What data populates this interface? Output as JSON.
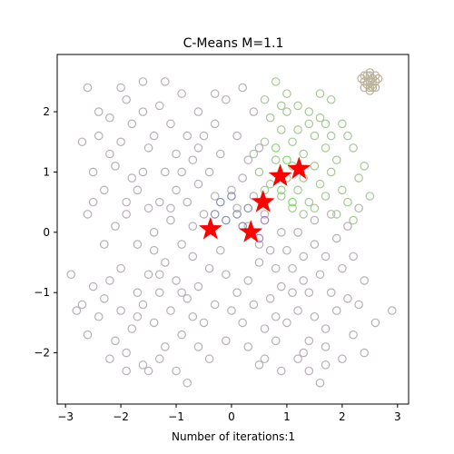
{
  "chart_data": {
    "type": "scatter",
    "title": "C-Means M=1.1",
    "xlabel": "Number of iterations:1",
    "ylabel": "",
    "xlim": [
      -3.15,
      3.2
    ],
    "ylim": [
      -2.85,
      2.95
    ],
    "x_ticks": [
      -3,
      -2,
      -1,
      0,
      1,
      2,
      3
    ],
    "y_ticks": [
      -2,
      -1,
      0,
      1,
      2
    ],
    "grid": false,
    "colors": {
      "cluster_gray": "#b8b0b8",
      "cluster_green": "#a8c896",
      "cluster_bright_green": "#7fdd6a",
      "cluster_blue": "#8a8fb0",
      "cluster_purple": "#a880c8",
      "cluster_tan": "#bdb29a",
      "center": "#ff0000"
    },
    "series": [
      {
        "color_key": "cluster_gray",
        "points": [
          [
            -2.6,
            2.4
          ],
          [
            -2.2,
            1.9
          ],
          [
            -2.0,
            1.5
          ],
          [
            -2.4,
            1.6
          ],
          [
            -2.5,
            1.0
          ],
          [
            -2.1,
            1.1
          ],
          [
            -2.3,
            0.7
          ],
          [
            -1.9,
            0.5
          ],
          [
            -2.6,
            0.3
          ],
          [
            -2.1,
            0.1
          ],
          [
            -1.8,
            1.8
          ],
          [
            -1.6,
            2.0
          ],
          [
            -1.5,
            1.4
          ],
          [
            -1.6,
            1.0
          ],
          [
            -1.7,
            0.7
          ],
          [
            -1.5,
            0.4
          ],
          [
            -1.4,
            0.0
          ],
          [
            -1.7,
            -0.2
          ],
          [
            -2.0,
            -0.6
          ],
          [
            -2.2,
            -0.8
          ],
          [
            -2.5,
            -0.9
          ],
          [
            -2.7,
            -1.2
          ],
          [
            -2.4,
            -1.4
          ],
          [
            -2.0,
            -1.3
          ],
          [
            -1.8,
            -1.6
          ],
          [
            -2.1,
            -1.8
          ],
          [
            -1.9,
            -2.0
          ],
          [
            -1.6,
            -2.2
          ],
          [
            -1.3,
            -2.1
          ],
          [
            -1.0,
            -2.3
          ],
          [
            -1.2,
            -1.9
          ],
          [
            -1.4,
            -1.5
          ],
          [
            -1.6,
            -1.2
          ],
          [
            -1.3,
            -1.0
          ],
          [
            -1.5,
            -0.7
          ],
          [
            -1.2,
            -0.5
          ],
          [
            -1.0,
            -0.8
          ],
          [
            -0.8,
            -1.1
          ],
          [
            -0.7,
            -1.4
          ],
          [
            -0.9,
            -1.7
          ],
          [
            -0.6,
            -1.9
          ],
          [
            -0.5,
            -1.5
          ],
          [
            -0.3,
            -1.2
          ],
          [
            -0.6,
            -0.9
          ],
          [
            -0.4,
            -0.6
          ],
          [
            -0.7,
            -0.4
          ],
          [
            -0.9,
            -0.2
          ],
          [
            -1.1,
            0.2
          ],
          [
            -1.3,
            0.5
          ],
          [
            -1.0,
            0.7
          ],
          [
            -1.2,
            1.0
          ],
          [
            -1.0,
            1.3
          ],
          [
            -0.8,
            1.6
          ],
          [
            -1.1,
            1.8
          ],
          [
            -1.3,
            2.1
          ],
          [
            -0.9,
            2.3
          ],
          [
            -0.6,
            2.0
          ],
          [
            -0.5,
            1.6
          ],
          [
            -0.7,
            1.2
          ],
          [
            -0.4,
            1.0
          ],
          [
            -0.6,
            0.8
          ],
          [
            -0.8,
            0.5
          ],
          [
            -0.5,
            0.3
          ],
          [
            -0.7,
            0.1
          ],
          [
            -0.3,
            0.6
          ],
          [
            -0.2,
            1.3
          ],
          [
            -0.3,
            1.8
          ],
          [
            -0.1,
            2.2
          ],
          [
            0.2,
            2.4
          ],
          [
            0.4,
            2.0
          ],
          [
            0.1,
            1.6
          ],
          [
            0.3,
            1.2
          ],
          [
            0.5,
            1.4
          ],
          [
            0.2,
            0.9
          ],
          [
            0.0,
            0.7
          ],
          [
            0.4,
            0.6
          ],
          [
            0.6,
            0.3
          ],
          [
            0.9,
            0.0
          ],
          [
            0.7,
            -0.3
          ],
          [
            0.5,
            -0.5
          ],
          [
            0.3,
            -0.8
          ],
          [
            0.1,
            -1.0
          ],
          [
            0.4,
            -1.2
          ],
          [
            0.7,
            -1.1
          ],
          [
            0.9,
            -0.9
          ],
          [
            1.1,
            -0.6
          ],
          [
            1.3,
            -0.4
          ],
          [
            1.5,
            -0.2
          ],
          [
            1.6,
            -0.7
          ],
          [
            1.4,
            -1.0
          ],
          [
            1.2,
            -1.3
          ],
          [
            1.0,
            -1.5
          ],
          [
            0.8,
            -1.8
          ],
          [
            0.6,
            -2.1
          ],
          [
            0.9,
            -2.3
          ],
          [
            1.2,
            -2.1
          ],
          [
            1.4,
            -1.8
          ],
          [
            1.7,
            -1.6
          ],
          [
            1.9,
            -1.3
          ],
          [
            2.1,
            -1.1
          ],
          [
            1.8,
            -1.0
          ],
          [
            2.0,
            -0.6
          ],
          [
            1.7,
            -0.4
          ],
          [
            1.9,
            -0.1
          ],
          [
            2.2,
            -0.4
          ],
          [
            2.4,
            -0.8
          ],
          [
            2.3,
            -1.2
          ],
          [
            2.6,
            -1.5
          ],
          [
            2.2,
            -1.7
          ],
          [
            2.4,
            -2.0
          ],
          [
            2.0,
            -2.1
          ],
          [
            1.7,
            -2.2
          ],
          [
            1.4,
            -2.3
          ],
          [
            2.9,
            -1.3
          ],
          [
            -2.8,
            -1.3
          ],
          [
            -2.9,
            -0.7
          ],
          [
            -2.3,
            -0.2
          ],
          [
            -2.5,
            0.5
          ],
          [
            -2.7,
            1.5
          ],
          [
            -2.4,
            2.0
          ],
          [
            -1.9,
            2.2
          ],
          [
            -1.6,
            2.5
          ],
          [
            -1.2,
            2.5
          ],
          [
            -0.3,
            2.3
          ],
          [
            0.1,
            0.4
          ],
          [
            0.3,
            0.1
          ],
          [
            -0.2,
            -0.3
          ],
          [
            -0.1,
            -0.7
          ],
          [
            0.2,
            -1.5
          ],
          [
            -0.1,
            -1.8
          ],
          [
            0.3,
            -1.9
          ],
          [
            0.6,
            -1.6
          ],
          [
            0.8,
            -1.4
          ],
          [
            1.1,
            -1.0
          ],
          [
            1.3,
            -0.8
          ],
          [
            1.5,
            -1.4
          ],
          [
            1.7,
            -1.9
          ],
          [
            1.3,
            -2.0
          ],
          [
            -0.8,
            -2.5
          ],
          [
            -1.5,
            -2.3
          ],
          [
            -1.9,
            -2.3
          ],
          [
            -2.2,
            -2.1
          ],
          [
            -2.6,
            -1.7
          ],
          [
            -1.1,
            -1.3
          ],
          [
            -0.9,
            -1.0
          ],
          [
            -1.4,
            -0.3
          ],
          [
            -1.9,
            0.3
          ],
          [
            -1.8,
            0.9
          ],
          [
            -2.2,
            1.3
          ],
          [
            -1.4,
            1.6
          ],
          [
            -0.9,
            1.0
          ],
          [
            -0.6,
            1.4
          ],
          [
            -1.1,
            0.4
          ],
          [
            -1.3,
            -0.7
          ],
          [
            -1.7,
            -1.0
          ],
          [
            -2.3,
            -1.1
          ],
          [
            0.0,
            -1.3
          ],
          [
            0.5,
            -0.2
          ],
          [
            0.8,
            -0.6
          ],
          [
            1.0,
            -0.3
          ],
          [
            1.2,
            0.0
          ],
          [
            1.5,
            0.2
          ],
          [
            1.8,
            0.3
          ],
          [
            2.1,
            0.1
          ],
          [
            2.3,
            0.4
          ],
          [
            1.6,
            -2.5
          ],
          [
            0.5,
            -2.2
          ],
          [
            -0.4,
            -2.1
          ],
          [
            -1.7,
            -1.4
          ],
          [
            -2.0,
            2.4
          ]
        ]
      },
      {
        "color_key": "cluster_green",
        "points": [
          [
            0.6,
            2.2
          ],
          [
            0.8,
            2.5
          ],
          [
            1.0,
            2.0
          ],
          [
            1.2,
            2.1
          ],
          [
            1.4,
            1.8
          ],
          [
            1.6,
            1.9
          ],
          [
            1.8,
            1.6
          ],
          [
            2.0,
            1.8
          ],
          [
            2.2,
            1.4
          ],
          [
            1.9,
            1.2
          ],
          [
            1.7,
            1.4
          ],
          [
            1.5,
            1.1
          ],
          [
            1.3,
            1.3
          ],
          [
            1.1,
            1.5
          ],
          [
            0.9,
            1.7
          ],
          [
            0.7,
            1.9
          ],
          [
            0.6,
            1.5
          ],
          [
            0.8,
            1.2
          ],
          [
            1.0,
            0.9
          ],
          [
            1.2,
            0.7
          ],
          [
            1.4,
            0.5
          ],
          [
            1.6,
            0.8
          ],
          [
            1.8,
            1.0
          ],
          [
            2.0,
            0.7
          ],
          [
            2.3,
            0.9
          ],
          [
            2.5,
            0.6
          ],
          [
            2.1,
            0.5
          ],
          [
            1.9,
            0.3
          ],
          [
            1.7,
            0.6
          ],
          [
            1.5,
            0.4
          ],
          [
            1.3,
            0.3
          ],
          [
            1.1,
            0.4
          ],
          [
            0.9,
            0.6
          ],
          [
            0.7,
            0.8
          ],
          [
            0.5,
            1.0
          ],
          [
            0.4,
            1.3
          ],
          [
            1.2,
            1.7
          ],
          [
            1.4,
            2.0
          ],
          [
            1.6,
            2.3
          ],
          [
            1.0,
            2.3
          ],
          [
            2.4,
            1.1
          ],
          [
            2.2,
            0.2
          ],
          [
            1.8,
            2.2
          ],
          [
            2.1,
            1.6
          ],
          [
            0.9,
            2.1
          ],
          [
            1.1,
            1.1
          ],
          [
            1.3,
            0.9
          ],
          [
            1.5,
            1.6
          ],
          [
            1.7,
            1.8
          ],
          [
            0.6,
            0.7
          ]
        ]
      },
      {
        "color_key": "cluster_bright_green",
        "points": [
          [
            0.8,
            1.4
          ],
          [
            1.0,
            1.2
          ],
          [
            0.9,
            0.7
          ],
          [
            1.1,
            0.5
          ]
        ]
      },
      {
        "color_key": "cluster_blue",
        "points": [
          [
            0.0,
            0.6
          ],
          [
            0.1,
            0.3
          ],
          [
            -0.2,
            0.5
          ],
          [
            0.2,
            0.1
          ],
          [
            -0.1,
            0.2
          ],
          [
            0.3,
            0.4
          ],
          [
            -0.3,
            0.3
          ]
        ]
      },
      {
        "color_key": "cluster_purple",
        "points": [
          [
            0.6,
            0.2
          ],
          [
            0.5,
            -0.1
          ]
        ]
      },
      {
        "color_key": "cluster_tan",
        "points": [
          [
            2.4,
            2.5
          ],
          [
            2.5,
            2.4
          ],
          [
            2.6,
            2.5
          ],
          [
            2.5,
            2.6
          ],
          [
            2.45,
            2.45
          ],
          [
            2.55,
            2.55
          ],
          [
            2.5,
            2.5
          ],
          [
            2.4,
            2.4
          ],
          [
            2.6,
            2.4
          ],
          [
            2.5,
            2.35
          ],
          [
            2.45,
            2.6
          ],
          [
            2.55,
            2.45
          ],
          [
            2.35,
            2.55
          ],
          [
            2.65,
            2.55
          ],
          [
            2.5,
            2.65
          ],
          [
            2.6,
            2.6
          ],
          [
            2.4,
            2.6
          ],
          [
            2.55,
            2.4
          ]
        ]
      }
    ],
    "centers": [
      [
        -0.38,
        0.05
      ],
      [
        0.35,
        0.0
      ],
      [
        0.57,
        0.5
      ],
      [
        0.88,
        0.93
      ],
      [
        1.22,
        1.05
      ]
    ]
  }
}
